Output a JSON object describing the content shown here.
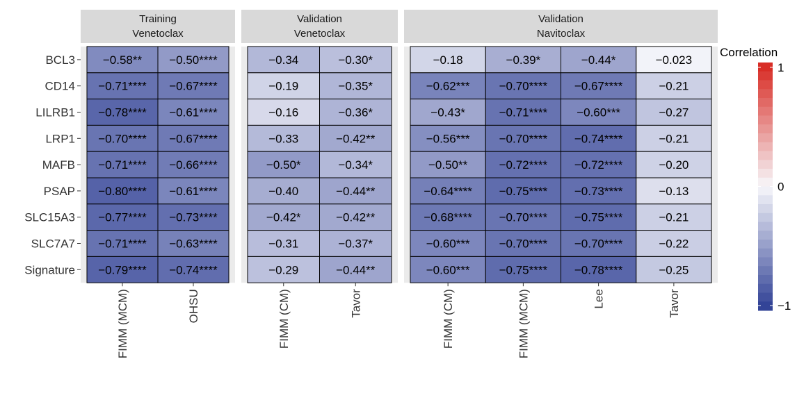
{
  "chart_data": {
    "type": "heatmap",
    "legend_title": "Correlation",
    "legend_ticks": [
      1,
      0,
      -1
    ],
    "legend_tick_labels": [
      "1",
      "0",
      "−1"
    ],
    "color_scale": {
      "low": "#2c3d93",
      "mid": "#f7f7fb",
      "high": "#d7261e",
      "range": [
        -1,
        1
      ]
    },
    "rows": [
      "BCL3",
      "CD14",
      "LILRB1",
      "LRP1",
      "MAFB",
      "PSAP",
      "SLC15A3",
      "SLC7A7",
      "Signature"
    ],
    "panels": [
      {
        "strip": [
          "Training",
          "Venetoclax"
        ],
        "columns": [
          "FIMM (MCM)",
          "OHSU"
        ],
        "values": [
          [
            -0.58,
            -0.5
          ],
          [
            -0.71,
            -0.67
          ],
          [
            -0.78,
            -0.61
          ],
          [
            -0.7,
            -0.67
          ],
          [
            -0.71,
            -0.66
          ],
          [
            -0.8,
            -0.61
          ],
          [
            -0.77,
            -0.73
          ],
          [
            -0.71,
            -0.63
          ],
          [
            -0.79,
            -0.74
          ]
        ],
        "labels": [
          [
            "−0.58**",
            "−0.50****"
          ],
          [
            "−0.71****",
            "−0.67****"
          ],
          [
            "−0.78****",
            "−0.61****"
          ],
          [
            "−0.70****",
            "−0.67****"
          ],
          [
            "−0.71****",
            "−0.66****"
          ],
          [
            "−0.80****",
            "−0.61****"
          ],
          [
            "−0.77****",
            "−0.73****"
          ],
          [
            "−0.71****",
            "−0.63****"
          ],
          [
            "−0.79****",
            "−0.74****"
          ]
        ]
      },
      {
        "strip": [
          "Validation",
          "Venetoclax"
        ],
        "columns": [
          "FIMM (CM)",
          "Tavor"
        ],
        "values": [
          [
            -0.34,
            -0.3
          ],
          [
            -0.19,
            -0.35
          ],
          [
            -0.16,
            -0.36
          ],
          [
            -0.33,
            -0.42
          ],
          [
            -0.5,
            -0.34
          ],
          [
            -0.4,
            -0.44
          ],
          [
            -0.42,
            -0.42
          ],
          [
            -0.31,
            -0.37
          ],
          [
            -0.29,
            -0.44
          ]
        ],
        "labels": [
          [
            "−0.34",
            "−0.30*"
          ],
          [
            "−0.19",
            "−0.35*"
          ],
          [
            "−0.16",
            "−0.36*"
          ],
          [
            "−0.33",
            "−0.42**"
          ],
          [
            "−0.50*",
            "−0.34*"
          ],
          [
            "−0.40",
            "−0.44**"
          ],
          [
            "−0.42*",
            "−0.42**"
          ],
          [
            "−0.31",
            "−0.37*"
          ],
          [
            "−0.29",
            "−0.44**"
          ]
        ]
      },
      {
        "strip": [
          "Validation",
          "Navitoclax"
        ],
        "columns": [
          "FIMM (CM)",
          "FIMM (MCM)",
          "Lee",
          "Tavor"
        ],
        "values": [
          [
            -0.18,
            -0.39,
            -0.44,
            -0.023
          ],
          [
            -0.62,
            -0.7,
            -0.67,
            -0.21
          ],
          [
            -0.43,
            -0.71,
            -0.6,
            -0.27
          ],
          [
            -0.56,
            -0.7,
            -0.74,
            -0.21
          ],
          [
            -0.5,
            -0.72,
            -0.72,
            -0.2
          ],
          [
            -0.64,
            -0.75,
            -0.73,
            -0.13
          ],
          [
            -0.68,
            -0.7,
            -0.75,
            -0.21
          ],
          [
            -0.6,
            -0.7,
            -0.7,
            -0.22
          ],
          [
            -0.6,
            -0.75,
            -0.78,
            -0.25
          ]
        ],
        "labels": [
          [
            "−0.18",
            "−0.39*",
            "−0.44*",
            "−0.023"
          ],
          [
            "−0.62***",
            "−0.70****",
            "−0.67****",
            "−0.21"
          ],
          [
            "−0.43*",
            "−0.71****",
            "−0.60***",
            "−0.27"
          ],
          [
            "−0.56***",
            "−0.70****",
            "−0.74****",
            "−0.21"
          ],
          [
            "−0.50**",
            "−0.72****",
            "−0.72****",
            "−0.20"
          ],
          [
            "−0.64****",
            "−0.75****",
            "−0.73****",
            "−0.13"
          ],
          [
            "−0.68****",
            "−0.70****",
            "−0.75****",
            "−0.21"
          ],
          [
            "−0.60***",
            "−0.70****",
            "−0.70****",
            "−0.22"
          ],
          [
            "−0.60***",
            "−0.75****",
            "−0.78****",
            "−0.25"
          ]
        ]
      }
    ]
  }
}
